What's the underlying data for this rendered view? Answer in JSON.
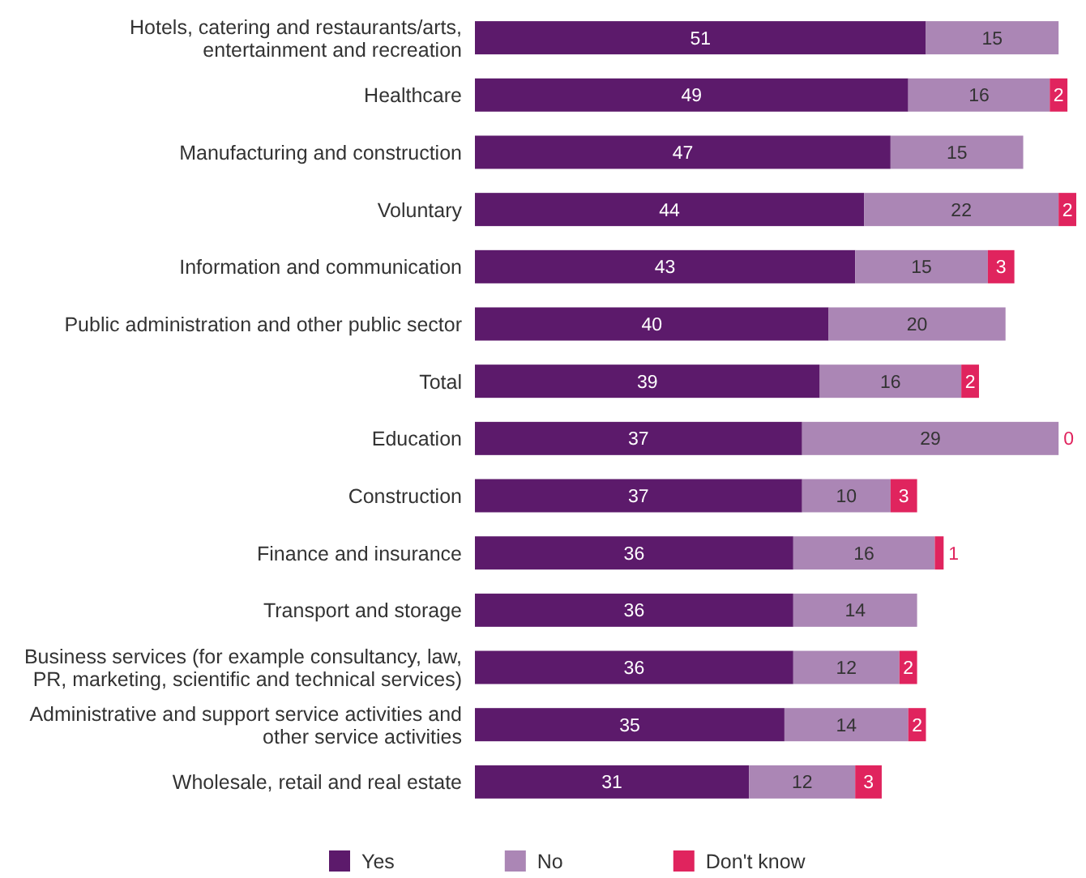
{
  "chart_data": {
    "type": "bar",
    "orientation": "horizontal",
    "stacked": true,
    "data_labels": true,
    "legend": "bottom",
    "categories": [
      "Hotels, catering and restaurants/arts, entertainment and recreation",
      "Healthcare",
      "Manufacturing and construction",
      "Voluntary",
      "Information and communication",
      "Public administration and other public sector",
      "Total",
      "Education",
      "Construction",
      "Finance and insurance",
      "Transport and storage",
      "Business services (for example consultancy, law, PR, marketing, scientific and technical services)",
      "Administrative and support service activities and other service activities",
      "Wholesale, retail and real estate"
    ],
    "series": [
      {
        "name": "Yes",
        "color": "#5c1a6b",
        "values": [
          51,
          49,
          47,
          44,
          43,
          40,
          39,
          37,
          37,
          36,
          36,
          36,
          35,
          31
        ]
      },
      {
        "name": "No",
        "color": "#ab86b5",
        "values": [
          15,
          16,
          15,
          22,
          15,
          20,
          16,
          29,
          10,
          16,
          14,
          12,
          14,
          12
        ]
      },
      {
        "name": "Don't know",
        "color": "#e0245e",
        "values": [
          null,
          2,
          null,
          2,
          3,
          null,
          2,
          0,
          3,
          1,
          null,
          2,
          2,
          3
        ]
      }
    ]
  }
}
